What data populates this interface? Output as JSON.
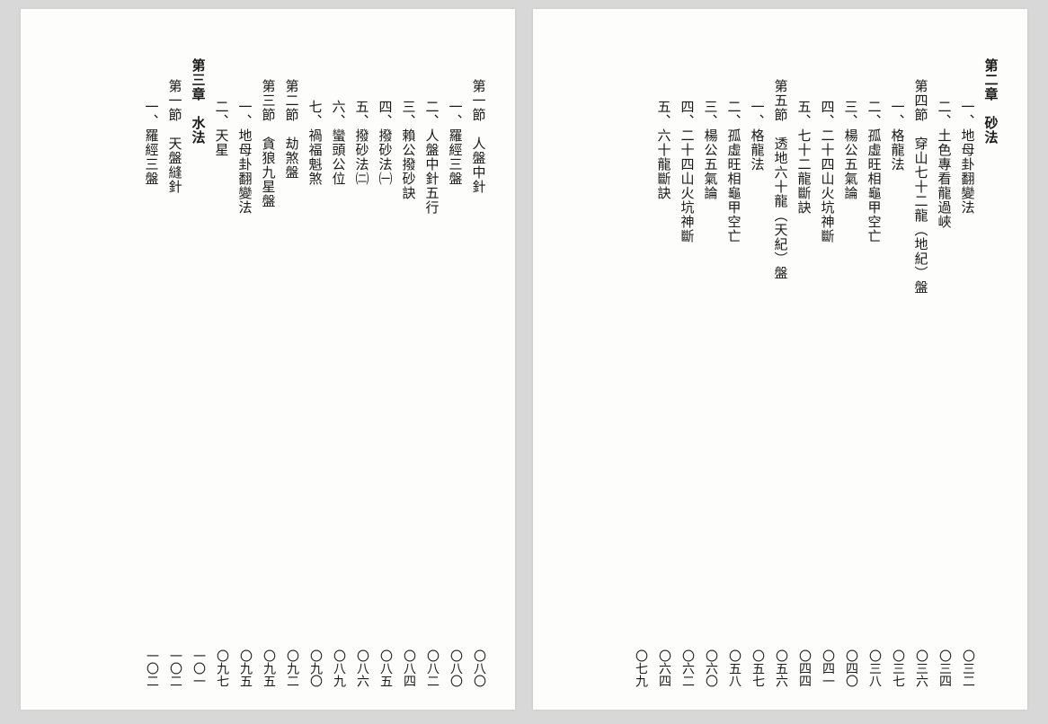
{
  "layout": {
    "background_color": "#d8d8d8",
    "page_color": "#fdfdfb",
    "text_color": "#1a1a1a",
    "font_family": "SimSun, serif",
    "title_fontsize": 15,
    "page_fontsize": 14
  },
  "right_page": {
    "entries": [
      {
        "type": "chapter",
        "title": "第二章　砂法",
        "page": ""
      },
      {
        "type": "item",
        "title": "一、地母卦翻變法",
        "page": "〇三二"
      },
      {
        "type": "item",
        "title": "二、土色專看龍過峽",
        "page": "〇三四"
      },
      {
        "type": "section",
        "title": "第四節　穿山七十二龍（地紀）盤",
        "page": "〇三六"
      },
      {
        "type": "item",
        "title": "一、格龍法",
        "page": "〇三七"
      },
      {
        "type": "item",
        "title": "二、孤虛旺相龜甲空亡",
        "page": "〇三八"
      },
      {
        "type": "item",
        "title": "三、楊公五氣論",
        "page": "〇四〇"
      },
      {
        "type": "item",
        "title": "四、二十四山火坑神斷",
        "page": "〇四一"
      },
      {
        "type": "item",
        "title": "五、七十二龍斷訣",
        "page": "〇四四"
      },
      {
        "type": "section",
        "title": "第五節　透地六十龍（天紀）盤",
        "page": "〇五六"
      },
      {
        "type": "item",
        "title": "一、格龍法",
        "page": "〇五七"
      },
      {
        "type": "item",
        "title": "二、孤虛旺相龜甲空亡",
        "page": "〇五八"
      },
      {
        "type": "item",
        "title": "三、楊公五氣論",
        "page": "〇六〇"
      },
      {
        "type": "item",
        "title": "四、二十四山火坑神斷",
        "page": "〇六二"
      },
      {
        "type": "item",
        "title": "五、六十龍斷訣",
        "page": "〇六四"
      },
      {
        "type": "chapter-only",
        "title": "　",
        "page": "〇七九"
      }
    ]
  },
  "left_page": {
    "entries": [
      {
        "type": "section",
        "title": "第一節　人盤中針",
        "page": "〇八〇"
      },
      {
        "type": "item",
        "title": "一、羅經三盤",
        "page": "〇八〇"
      },
      {
        "type": "item",
        "title": "二、人盤中針五行",
        "page": "〇八二"
      },
      {
        "type": "item",
        "title": "三、賴公撥砂訣",
        "page": "〇八四"
      },
      {
        "type": "item",
        "title": "四、撥砂法㈠",
        "page": "〇八五"
      },
      {
        "type": "item",
        "title": "五、撥砂法㈡",
        "page": "〇八六"
      },
      {
        "type": "item",
        "title": "六、蠻頭公位",
        "page": "〇八九"
      },
      {
        "type": "item",
        "title": "七、禍福魁煞",
        "page": "〇九〇"
      },
      {
        "type": "section",
        "title": "第二節　劫煞盤",
        "page": "〇九二"
      },
      {
        "type": "section",
        "title": "第三節　貪狼九星盤",
        "page": "〇九五"
      },
      {
        "type": "item",
        "title": "一、地母卦翻變法",
        "page": "〇九五"
      },
      {
        "type": "item",
        "title": "二、天星",
        "page": "〇九七"
      },
      {
        "type": "chapter",
        "title": "第三章　水法",
        "page": "一〇一"
      },
      {
        "type": "section",
        "title": "第一節　天盤縫針",
        "page": "一〇二"
      },
      {
        "type": "item",
        "title": "一、羅經三盤",
        "page": "一〇二"
      }
    ]
  }
}
